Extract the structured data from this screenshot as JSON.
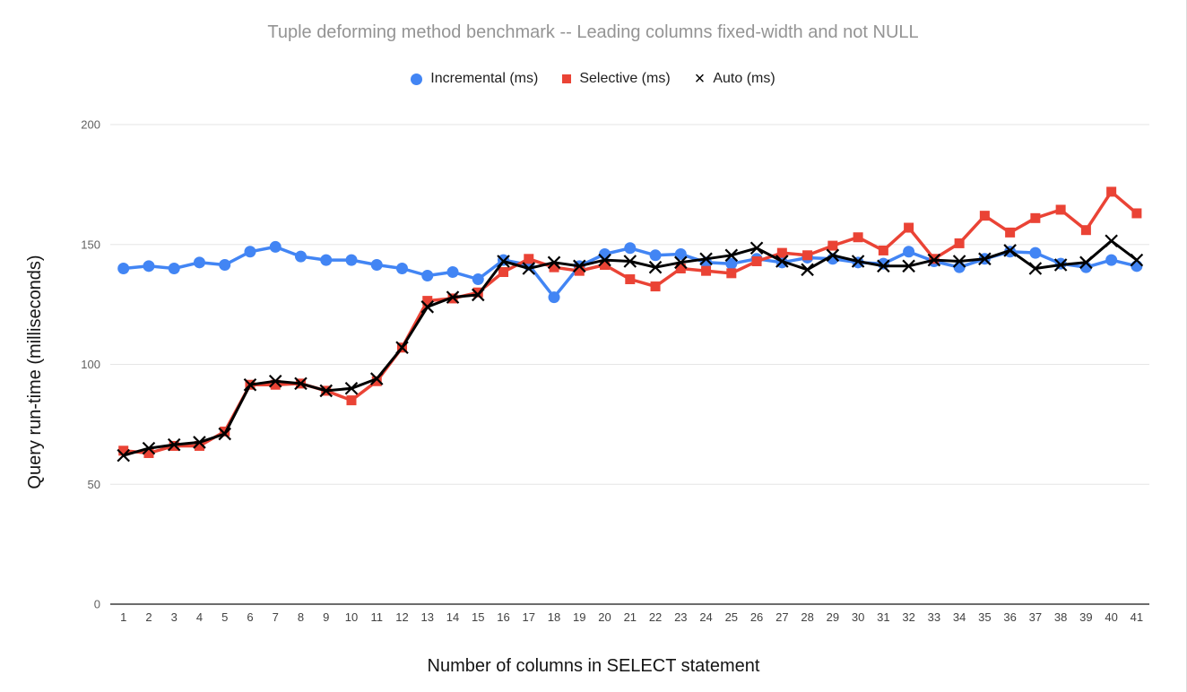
{
  "window": {
    "background": "#ffffff",
    "border_color": "#dcdcdc"
  },
  "chart_data": {
    "type": "line",
    "title": "Tuple deforming method benchmark -- Leading columns fixed-width and not NULL",
    "xlabel": "Number of columns in SELECT statement",
    "ylabel": "Query run-time (milliseconds)",
    "x": [
      1,
      2,
      3,
      4,
      5,
      6,
      7,
      8,
      9,
      10,
      11,
      12,
      13,
      14,
      15,
      16,
      17,
      18,
      19,
      20,
      21,
      22,
      23,
      24,
      25,
      26,
      27,
      28,
      29,
      30,
      31,
      32,
      33,
      34,
      35,
      36,
      37,
      38,
      39,
      40,
      41
    ],
    "ylim": [
      0,
      200
    ],
    "yticks": [
      0,
      50,
      100,
      150,
      200
    ],
    "grid": true,
    "legend_position": "top-center",
    "axis_colors": {
      "gridline": "#e6e6e6",
      "baseline": "#3c3c3c",
      "ytick_label": "#616161",
      "xtick_label": "#424242"
    },
    "title_color": "#949494",
    "series": [
      {
        "name": "Incremental (ms)",
        "color": "#4285f4",
        "marker": "circle",
        "values": [
          140,
          141,
          140,
          142.5,
          141.5,
          147,
          149,
          145,
          143.5,
          143.5,
          141.5,
          140,
          137,
          138.5,
          135.5,
          143.5,
          141.5,
          128,
          141,
          146,
          148.5,
          145.5,
          146,
          142.5,
          142,
          144,
          142.5,
          144.5,
          144,
          142.5,
          142,
          147,
          143,
          140.5,
          144,
          147,
          146.5,
          142,
          140.5,
          143.5,
          141
        ]
      },
      {
        "name": "Selective (ms)",
        "color": "#ea4335",
        "marker": "square",
        "values": [
          64,
          63,
          66,
          66,
          72,
          91.5,
          91.5,
          92,
          89,
          85,
          93,
          107,
          126.5,
          127.5,
          130,
          138.5,
          144,
          140.5,
          139,
          141.5,
          135.5,
          132.5,
          140,
          139,
          138,
          143,
          146.5,
          145.5,
          149.5,
          153,
          147.5,
          157,
          144,
          150.5,
          162,
          155,
          161,
          164.5,
          156,
          172,
          163
        ]
      },
      {
        "name": "Auto (ms)",
        "color": "#000000",
        "marker": "x",
        "values": [
          62,
          65,
          66.5,
          67.5,
          71,
          91.5,
          93,
          92,
          89,
          90,
          94,
          107,
          124,
          128,
          129,
          143,
          140,
          142.5,
          141,
          143.5,
          143,
          140.5,
          142.5,
          144,
          145.5,
          148.5,
          143,
          139.5,
          145.5,
          143,
          141,
          141,
          143.5,
          143,
          144,
          147.5,
          140,
          141.5,
          142.5,
          151.5,
          143.5
        ]
      }
    ]
  }
}
